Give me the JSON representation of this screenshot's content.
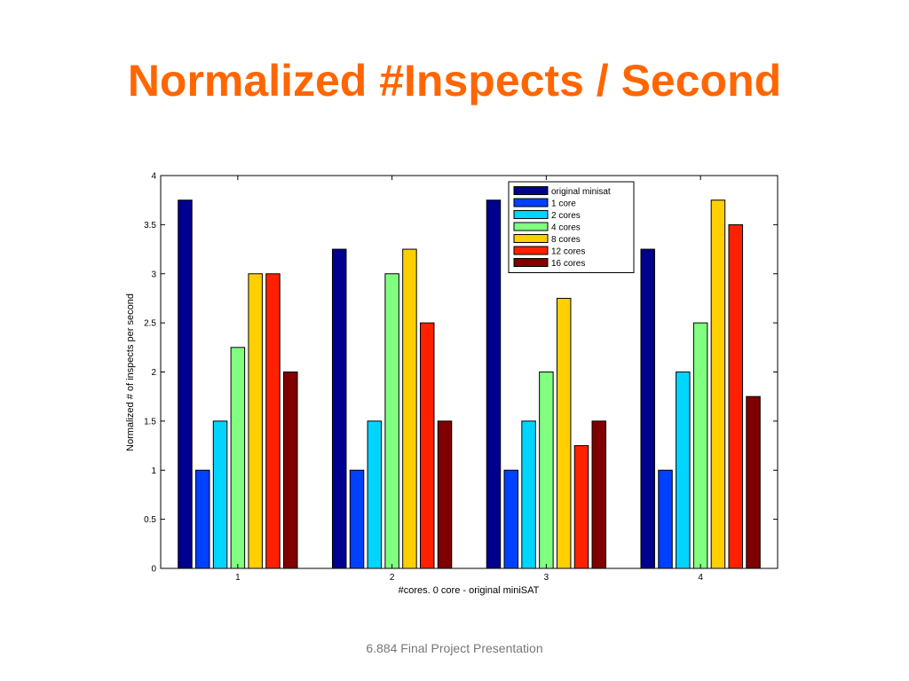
{
  "slide": {
    "title": "Normalized #Inspects / Second",
    "footer": "6.884 Final Project Presentation"
  },
  "chart_data": {
    "type": "bar",
    "title": "",
    "xlabel": "#cores.   0 core - original miniSAT",
    "ylabel": "Normalized # of inspects per second",
    "categories": [
      "1",
      "2",
      "3",
      "4"
    ],
    "ylim": [
      0,
      4
    ],
    "yticks": [
      "0",
      "0.5",
      "1",
      "1.5",
      "2",
      "2.5",
      "3",
      "3.5",
      "4"
    ],
    "grid": false,
    "legend_position": "top-right",
    "series": [
      {
        "name": "original minisat",
        "color": "#00008f",
        "values": [
          3.75,
          3.25,
          3.75,
          3.25
        ]
      },
      {
        "name": "1 core",
        "color": "#0040ff",
        "values": [
          1.0,
          1.0,
          1.0,
          1.0
        ]
      },
      {
        "name": "2 cores",
        "color": "#00d5ff",
        "values": [
          1.5,
          1.5,
          1.5,
          2.0
        ]
      },
      {
        "name": "4 cores",
        "color": "#80ff80",
        "values": [
          2.25,
          3.0,
          2.0,
          2.5
        ]
      },
      {
        "name": "8 cores",
        "color": "#ffcf00",
        "values": [
          3.0,
          3.25,
          2.75,
          3.75
        ]
      },
      {
        "name": "12 cores",
        "color": "#ff2000",
        "values": [
          3.0,
          2.5,
          1.25,
          3.5
        ]
      },
      {
        "name": "16 cores",
        "color": "#800000",
        "values": [
          2.0,
          1.5,
          1.5,
          1.75
        ]
      }
    ]
  }
}
